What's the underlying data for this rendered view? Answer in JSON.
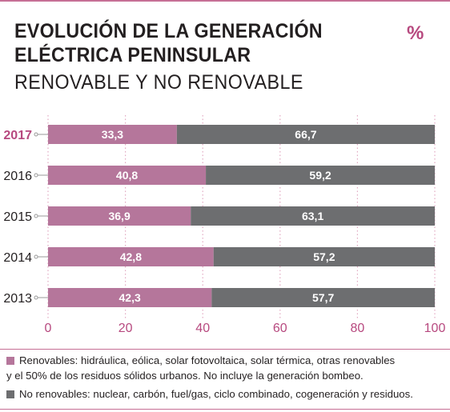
{
  "header": {
    "title_line1": "EVOLUCIÓN DE LA GENERACIÓN",
    "title_line2": "ELÉCTRICA PENINSULAR",
    "subtitle": "RENOVABLE Y NO RENOVABLE",
    "unit": "%"
  },
  "colors": {
    "renewable": "#b5769b",
    "non_renewable": "#6d6e70",
    "accent": "#c66f95",
    "highlight_label": "#b7497f"
  },
  "chart_data": {
    "type": "bar",
    "orientation": "horizontal",
    "stacked": true,
    "categories": [
      "2017",
      "2016",
      "2015",
      "2014",
      "2013"
    ],
    "highlighted_category": "2017",
    "series": [
      {
        "name": "Renovables",
        "values": [
          33.3,
          40.8,
          36.9,
          42.8,
          42.3
        ],
        "labels": [
          "33,3",
          "40,8",
          "36,9",
          "42,8",
          "42,3"
        ]
      },
      {
        "name": "No renovables",
        "values": [
          66.7,
          59.2,
          63.1,
          57.2,
          57.7
        ],
        "labels": [
          "66,7",
          "59,2",
          "63,1",
          "57,2",
          "57,7"
        ]
      }
    ],
    "xlim": [
      0,
      100
    ],
    "xticks": [
      "0",
      "20",
      "40",
      "60",
      "80",
      "100"
    ],
    "grid": "vertical dotted",
    "legend_placement": "bottom"
  },
  "legend": {
    "renewable_line1": "Renovables: hidráulica, eólica, solar fotovoltaica, solar térmica, otras renovables",
    "renewable_line2": "y el 50% de los residuos sólidos urbanos. No incluye la generación bombeo.",
    "non_renewable": "No renovables: nuclear, carbón, fuel/gas, ciclo combinado, cogeneración y residuos."
  }
}
